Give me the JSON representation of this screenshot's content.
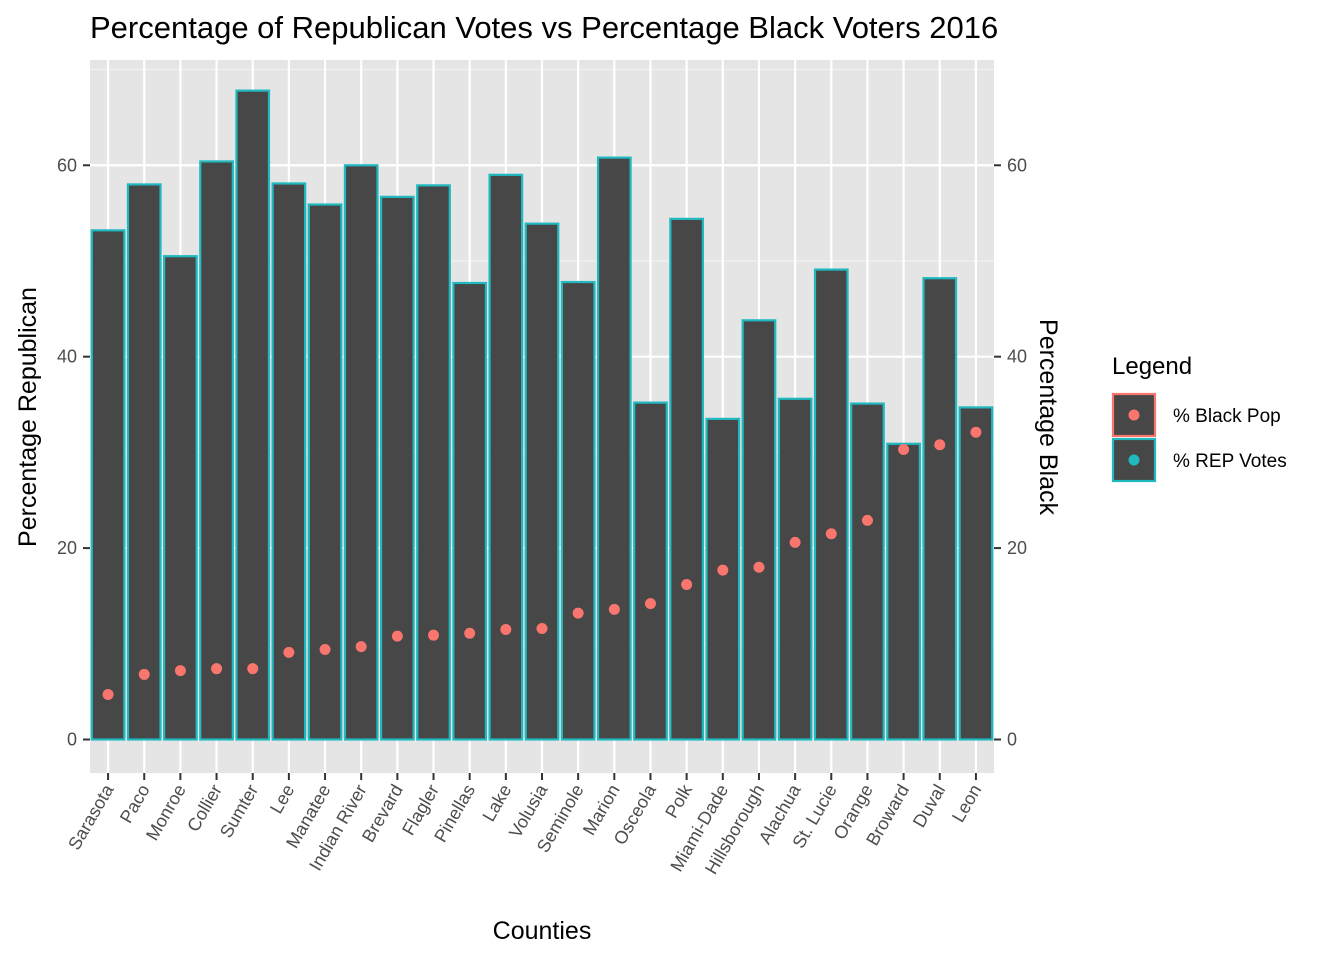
{
  "chart_data": {
    "type": "bar",
    "title": "Percentage of Republican Votes vs Percentage Black Voters 2016",
    "xlabel": "Counties",
    "ylabel": "Percentage Republican",
    "ylabel_right": "Percentage Black",
    "ylim": [
      -3.5,
      71
    ],
    "yticks": [
      0,
      20,
      40,
      60
    ],
    "grid": true,
    "legend_position": "right",
    "categories": [
      "Sarasota",
      "Paco",
      "Monroe",
      "Collier",
      "Sumter",
      "Lee",
      "Manatee",
      "Indian River",
      "Brevard",
      "Flagler",
      "Pinellas",
      "Lake",
      "Volusia",
      "Seminole",
      "Marion",
      "Osceola",
      "Polk",
      "Miami-Dade",
      "Hillsborough",
      "Alachua",
      "St. Lucie",
      "Orange",
      "Broward",
      "Duval",
      "Leon"
    ],
    "series": [
      {
        "name": "% REP Votes",
        "kind": "bar",
        "fill": "#474747",
        "color": "#1fb9bf",
        "values": [
          53.2,
          58.0,
          50.5,
          60.4,
          67.8,
          58.1,
          55.9,
          60.0,
          56.7,
          57.9,
          47.7,
          59.0,
          53.9,
          47.8,
          60.8,
          35.2,
          54.4,
          33.5,
          43.8,
          35.6,
          49.1,
          35.1,
          30.9,
          48.2,
          34.7
        ]
      },
      {
        "name": "% Black Pop",
        "kind": "point",
        "color": "#f8766d",
        "values": [
          4.7,
          6.8,
          7.2,
          7.4,
          7.4,
          9.1,
          9.4,
          9.7,
          10.8,
          10.9,
          11.1,
          11.5,
          11.6,
          13.2,
          13.6,
          14.2,
          16.2,
          17.7,
          18.0,
          20.6,
          21.5,
          22.9,
          30.3,
          30.8,
          32.1
        ]
      }
    ],
    "legend": {
      "title": "Legend",
      "items": [
        {
          "label": "% Black Pop",
          "point_color": "#f8766d",
          "border_color": "#f8766d"
        },
        {
          "label": "% REP Votes",
          "point_color": "#1fb9bf",
          "border_color": "#1fb9bf"
        }
      ]
    },
    "colors": {
      "panel_bg": "#e5e5e5",
      "grid_major": "#ffffff",
      "bar_fill": "#474747",
      "bar_outline": "#1fb9bf",
      "point": "#f8766d"
    }
  }
}
